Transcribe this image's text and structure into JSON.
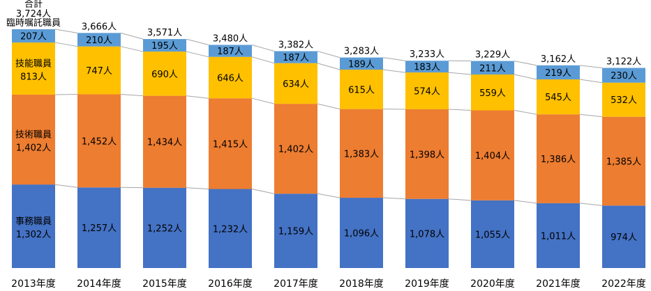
{
  "chart_data": {
    "type": "bar",
    "stacked": true,
    "categories": [
      "2013年度",
      "2014年度",
      "2015年度",
      "2016年度",
      "2017年度",
      "2018年度",
      "2019年度",
      "2020年度",
      "2021年度",
      "2022年度"
    ],
    "series": [
      {
        "name": "事務職員",
        "color": "#4472C4",
        "values": [
          1302,
          1257,
          1252,
          1232,
          1159,
          1096,
          1078,
          1055,
          1011,
          974
        ],
        "labels": [
          "1,302人",
          "1,257人",
          "1,252人",
          "1,232人",
          "1,159人",
          "1,096人",
          "1,078人",
          "1,055人",
          "1,011人",
          "974人"
        ]
      },
      {
        "name": "技術職員",
        "color": "#ED7D31",
        "values": [
          1402,
          1452,
          1434,
          1415,
          1402,
          1383,
          1398,
          1404,
          1386,
          1385
        ],
        "labels": [
          "1,402人",
          "1,452人",
          "1,434人",
          "1,415人",
          "1,402人",
          "1,383人",
          "1,398人",
          "1,404人",
          "1,386人",
          "1,385人"
        ]
      },
      {
        "name": "技能職員",
        "color": "#FFC000",
        "values": [
          813,
          747,
          690,
          646,
          634,
          615,
          574,
          559,
          545,
          532
        ],
        "labels": [
          "813人",
          "747人",
          "690人",
          "646人",
          "634人",
          "615人",
          "574人",
          "559人",
          "545人",
          "532人"
        ]
      },
      {
        "name": "臨時嘱託職員",
        "color": "#5B9BD5",
        "values": [
          207,
          210,
          195,
          187,
          187,
          189,
          183,
          211,
          219,
          230
        ],
        "labels": [
          "207人",
          "210人",
          "195人",
          "187人",
          "187人",
          "189人",
          "183人",
          "211人",
          "219人",
          "230人"
        ]
      }
    ],
    "totals_name": "合計",
    "totals": [
      3724,
      3666,
      3571,
      3480,
      3382,
      3283,
      3233,
      3229,
      3162,
      3122
    ],
    "total_labels": [
      "3,724人",
      "3,666人",
      "3,571人",
      "3,480人",
      "3,382人",
      "3,283人",
      "3,233人",
      "3,229人",
      "3,162人",
      "3,122人"
    ],
    "series_lines": true,
    "grid": false,
    "legend": "none"
  }
}
